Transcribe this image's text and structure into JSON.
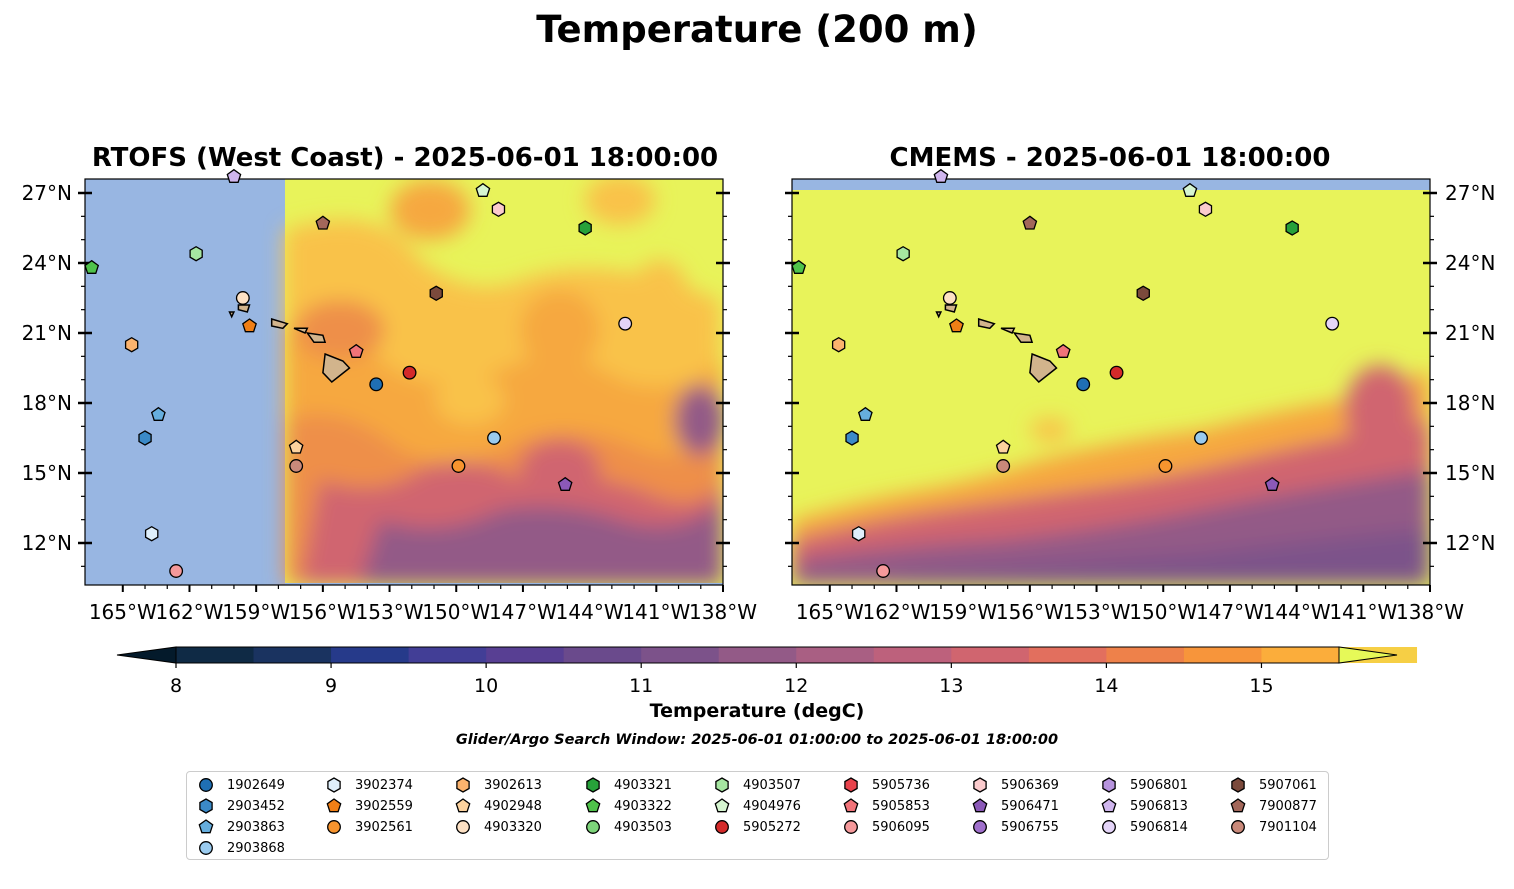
{
  "title": "Temperature (200 m)",
  "panels": [
    {
      "title": "RTOFS (West Coast) - 2025-06-01 18:00:00"
    },
    {
      "title": "CMEMS - 2025-06-01 18:00:00"
    }
  ],
  "colorbar": {
    "label": "Temperature (degC)",
    "min": 8,
    "max": 15.5,
    "step": 0.5,
    "extend": "both",
    "ticks": [
      "8",
      "9",
      "10",
      "11",
      "12",
      "13",
      "14",
      "15"
    ],
    "colors": [
      "#0f2a45",
      "#1a3360",
      "#263a8a",
      "#423e96",
      "#583f93",
      "#6a4a8c",
      "#7c528a",
      "#935a87",
      "#a95f83",
      "#bd617c",
      "#d0656f",
      "#e26f5e",
      "#ee814a",
      "#f7953b",
      "#fbad3b",
      "#f6cf45"
    ],
    "under_color": "#041a2b",
    "over_color": "#e6f958"
  },
  "search_window": "Glider/Argo Search Window: 2025-06-01 01:00:00 to 2025-06-01 18:00:00",
  "chart_data": {
    "type": "map",
    "x_ticks": [
      "165°W",
      "162°W",
      "159°W",
      "156°W",
      "153°W",
      "150°W",
      "147°W",
      "144°W",
      "141°W",
      "138°W"
    ],
    "y_ticks": [
      "27°N",
      "24°N",
      "21°N",
      "18°N",
      "15°N",
      "12°N"
    ],
    "lon_range": [
      -166.7,
      -138
    ],
    "lat_range": [
      10.2,
      27.6
    ],
    "colors": {
      "land": "#d2b48c",
      "nodata": "#98b6e2"
    },
    "floats": [
      {
        "id": "1902649",
        "marker": "circle",
        "color": "#1f6fb4",
        "lon": -153.6,
        "lat": 18.8
      },
      {
        "id": "2903452",
        "marker": "hexagon",
        "color": "#3b8ac8",
        "lon": -164.0,
        "lat": 16.5
      },
      {
        "id": "2903863",
        "marker": "pentagon",
        "color": "#66aede",
        "lon": -163.4,
        "lat": 17.5
      },
      {
        "id": "2903868",
        "marker": "circle",
        "color": "#9acbef",
        "lon": -148.3,
        "lat": 16.5
      },
      {
        "id": "3902374",
        "marker": "hexagon",
        "color": "#dfeffb",
        "lon": -163.7,
        "lat": 12.4
      },
      {
        "id": "3902559",
        "marker": "pentagon",
        "color": "#f07f16",
        "lon": -159.3,
        "lat": 21.3
      },
      {
        "id": "3902561",
        "marker": "circle",
        "color": "#f7942e",
        "lon": -149.9,
        "lat": 15.3
      },
      {
        "id": "3902613",
        "marker": "hexagon",
        "color": "#fbb36e",
        "lon": -164.6,
        "lat": 20.5
      },
      {
        "id": "4902948",
        "marker": "pentagon",
        "color": "#fcd29e",
        "lon": -157.2,
        "lat": 16.1
      },
      {
        "id": "4903320",
        "marker": "circle",
        "color": "#fde1c4",
        "lon": -159.6,
        "lat": 22.5
      },
      {
        "id": "4903321",
        "marker": "hexagon",
        "color": "#27a13a",
        "lon": -144.2,
        "lat": 25.5
      },
      {
        "id": "4903322",
        "marker": "pentagon",
        "color": "#4fc24a",
        "lon": -166.4,
        "lat": 23.8
      },
      {
        "id": "4903503",
        "marker": "circle",
        "color": "#7dd47a",
        "lon": null,
        "lat": null
      },
      {
        "id": "4903507",
        "marker": "hexagon",
        "color": "#a6e6a1",
        "lon": -161.7,
        "lat": 24.4
      },
      {
        "id": "4904976",
        "marker": "pentagon",
        "color": "#d6f5d0",
        "lon": -148.8,
        "lat": 27.1
      },
      {
        "id": "5905272",
        "marker": "circle",
        "color": "#d42a2a",
        "lon": -152.1,
        "lat": 19.3
      },
      {
        "id": "5905736",
        "marker": "hexagon",
        "color": "#e8434c",
        "lon": null,
        "lat": null
      },
      {
        "id": "5905853",
        "marker": "pentagon",
        "color": "#f17379",
        "lon": -154.5,
        "lat": 20.2
      },
      {
        "id": "5906095",
        "marker": "circle",
        "color": "#f5999b",
        "lon": -162.6,
        "lat": 10.8
      },
      {
        "id": "5906369",
        "marker": "hexagon",
        "color": "#fbcbcd",
        "lon": -148.1,
        "lat": 26.3
      },
      {
        "id": "5906471",
        "marker": "pentagon",
        "color": "#8b59b8",
        "lon": -145.1,
        "lat": 14.5
      },
      {
        "id": "5906755",
        "marker": "circle",
        "color": "#a070cc",
        "lon": null,
        "lat": null
      },
      {
        "id": "5906801",
        "marker": "hexagon",
        "color": "#b794de",
        "lon": null,
        "lat": null
      },
      {
        "id": "5906813",
        "marker": "pentagon",
        "color": "#d0b6ee",
        "lon": -160.0,
        "lat": 27.7
      },
      {
        "id": "5906814",
        "marker": "circle",
        "color": "#e4d4f8",
        "lon": -142.4,
        "lat": 21.4
      },
      {
        "id": "5907061",
        "marker": "hexagon",
        "color": "#7b4a3c",
        "lon": -150.9,
        "lat": 22.7
      },
      {
        "id": "7900877",
        "marker": "pentagon",
        "color": "#a3675a",
        "lon": -156.0,
        "lat": 25.7
      },
      {
        "id": "7901104",
        "marker": "circle",
        "color": "#c9897a",
        "lon": -157.2,
        "lat": 15.3
      }
    ]
  }
}
